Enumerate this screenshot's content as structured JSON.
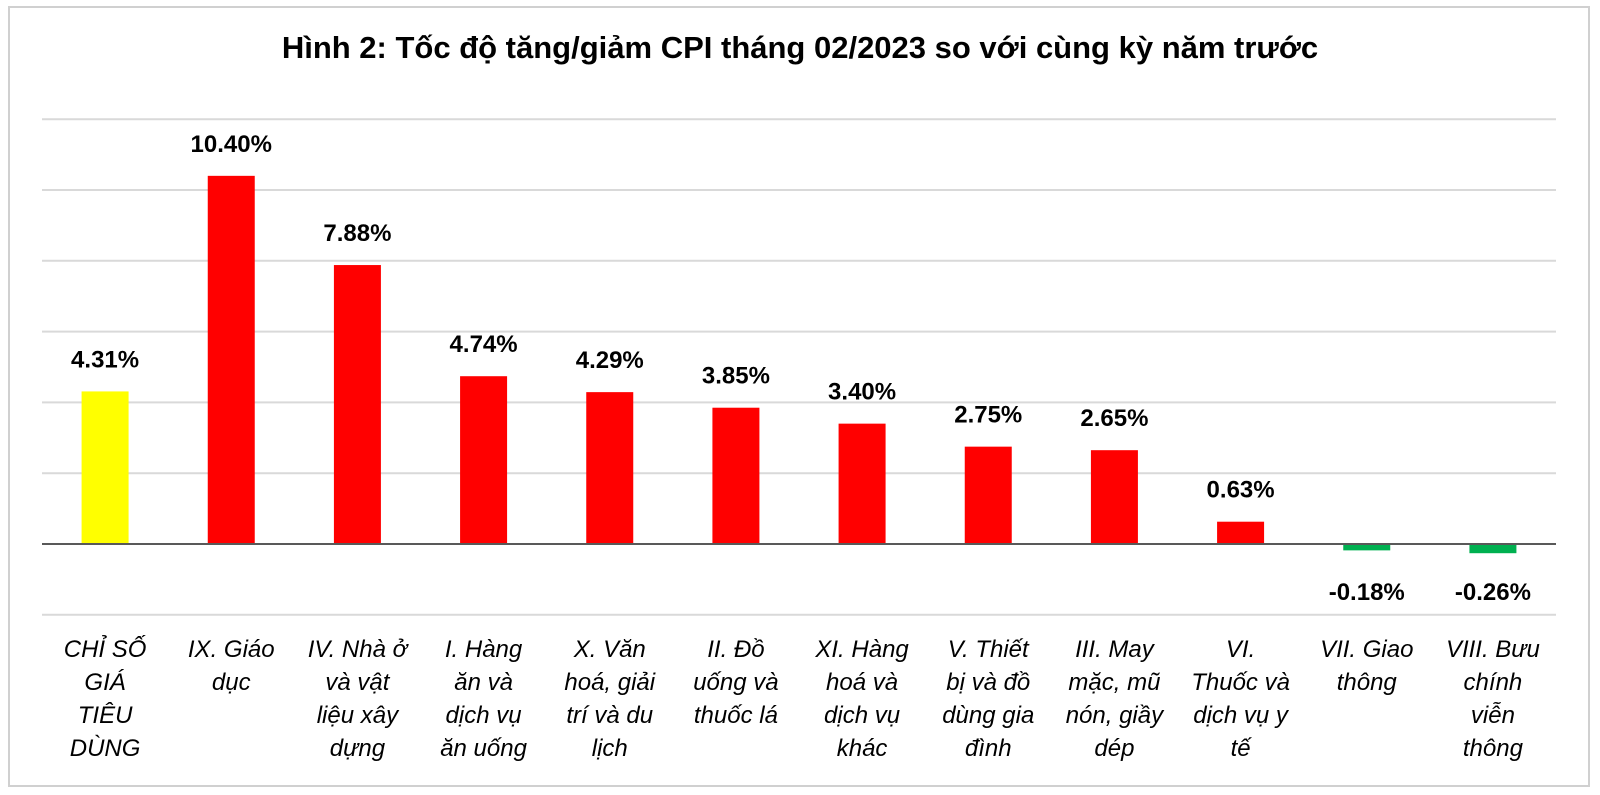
{
  "chart_data": {
    "type": "bar",
    "title": "Hình 2: Tốc độ tăng/giảm CPI tháng 02/2023 so với cùng kỳ năm trước",
    "xlabel": "",
    "ylabel": "",
    "ylim": [
      -2,
      12
    ],
    "grid": true,
    "legend": "none",
    "categories": [
      "CHỈ SỐ GIÁ TIÊU DÙNG",
      "IX. Giáo dục",
      "IV. Nhà ở và vật liệu xây dựng",
      "I. Hàng ăn và dịch vụ ăn uống",
      "X. Văn hoá, giải trí và du lịch",
      "II. Đồ uống và thuốc lá",
      "XI. Hàng hoá và dịch vụ khác",
      "V. Thiết bị và đồ dùng gia đình",
      "III. May mặc, mũ nón, giầy dép",
      "VI. Thuốc và dịch vụ y tế",
      "VII. Giao thông",
      "VIII. Bưu chính viễn thông"
    ],
    "category_lines": [
      [
        "CHỈ SỐ",
        "GIÁ",
        "TIÊU",
        "DÙNG"
      ],
      [
        "IX. Giáo",
        "dục"
      ],
      [
        "IV. Nhà ở",
        "và vật",
        "liệu xây",
        "dựng"
      ],
      [
        "I. Hàng",
        "ăn và",
        "dịch vụ",
        "ăn uống"
      ],
      [
        "X. Văn",
        "hoá, giải",
        "trí và du",
        "lịch"
      ],
      [
        "II. Đồ",
        "uống và",
        "thuốc lá"
      ],
      [
        "XI. Hàng",
        "hoá và",
        "dịch vụ",
        "khác"
      ],
      [
        "V. Thiết",
        "bị và đồ",
        "dùng gia",
        "đình"
      ],
      [
        "III. May",
        "mặc, mũ",
        "nón, giầy",
        "dép"
      ],
      [
        "VI.",
        "Thuốc và",
        "dịch vụ y",
        "tế"
      ],
      [
        "VII. Giao",
        "thông"
      ],
      [
        "VIII. Bưu",
        "chính",
        "viễn",
        "thông"
      ]
    ],
    "values": [
      4.31,
      10.4,
      7.88,
      4.74,
      4.29,
      3.85,
      3.4,
      2.75,
      2.65,
      0.63,
      -0.18,
      -0.26
    ],
    "data_labels": [
      "4.31%",
      "10.40%",
      "7.88%",
      "4.74%",
      "4.29%",
      "3.85%",
      "3.40%",
      "2.75%",
      "2.65%",
      "0.63%",
      "-0.18%",
      "-0.26%"
    ],
    "colors": {
      "total": "#ffff00",
      "positive": "#ff0000",
      "negative": "#00b050",
      "grid": "#d9d9d9",
      "axis": "#595959"
    }
  }
}
